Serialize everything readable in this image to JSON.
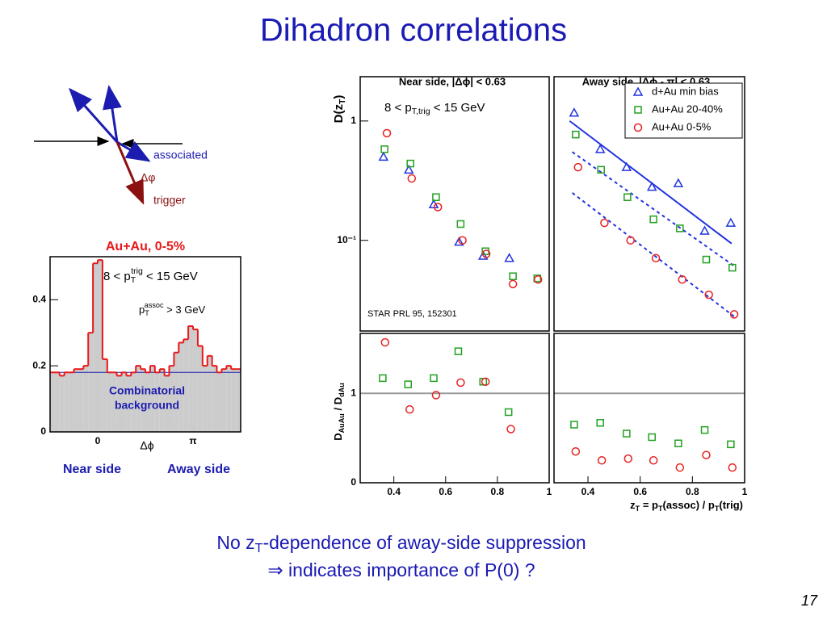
{
  "title": "Dihadron correlations",
  "diagram": {
    "associated": "associated",
    "delta_phi": "Δφ",
    "trigger": "trigger"
  },
  "chart_data": [
    {
      "type": "histogram",
      "title": "Au+Au, 0-5%",
      "annotations": [
        [
          "8 < p",
          "T",
          "trig",
          " < 15 GeV"
        ],
        [
          "p",
          "T",
          "assoc",
          " > 3 GeV"
        ]
      ],
      "background_label": [
        "Combinatorial",
        "background"
      ],
      "x_label": "Δϕ",
      "side_labels": [
        "Near side",
        "Away side"
      ],
      "bins": [
        -1.571,
        -1.414,
        -1.257,
        -1.1,
        -0.942,
        -0.785,
        -0.628,
        -0.471,
        -0.314,
        -0.157,
        0,
        0.157,
        0.314,
        0.471,
        0.628,
        0.785,
        0.942,
        1.1,
        1.257,
        1.414,
        1.571,
        1.728,
        1.885,
        2.042,
        2.199,
        2.356,
        2.513,
        2.67,
        2.827,
        2.985,
        3.142,
        3.299,
        3.456,
        3.613,
        3.77,
        3.927,
        4.084,
        4.241,
        4.398,
        4.555,
        4.712
      ],
      "values": [
        0.18,
        0.18,
        0.17,
        0.18,
        0.18,
        0.19,
        0.19,
        0.2,
        0.3,
        0.51,
        0.52,
        0.22,
        0.18,
        0.18,
        0.17,
        0.18,
        0.17,
        0.18,
        0.2,
        0.19,
        0.18,
        0.2,
        0.18,
        0.19,
        0.17,
        0.2,
        0.24,
        0.27,
        0.28,
        0.32,
        0.31,
        0.26,
        0.2,
        0.23,
        0.2,
        0.18,
        0.19,
        0.2,
        0.19,
        0.19
      ],
      "color": "#e81818",
      "fill": "#cccccc",
      "background_level": 0.18,
      "background_color": "#1c1cb0",
      "xlim": [
        -1.571,
        4.712
      ],
      "xticks": [
        0,
        {
          "value": 3.1416,
          "label": "π"
        }
      ],
      "ylim": [
        0,
        0.53
      ],
      "yticks": [
        0,
        0.2,
        0.4
      ]
    },
    {
      "type": "scatter",
      "title": "Near side, |Δϕ| < 0.63",
      "y_label": [
        "D(z",
        "T",
        ")"
      ],
      "annotations": [
        [
          "8 < p",
          "T,trig",
          " < 15 GeV"
        ],
        [
          "STAR PRL 95, 152301"
        ]
      ],
      "yscale": "log",
      "xlim": [
        0.27,
        1.0
      ],
      "ylim": [
        0.0174,
        2.35
      ],
      "yticks": [
        1,
        {
          "value": 0.1,
          "label": "10⁻¹"
        }
      ],
      "series": [
        {
          "marker": "triangle",
          "color": "#2233dd",
          "x": [
            0.36,
            0.458,
            0.554,
            0.652,
            0.745,
            0.846
          ],
          "values": [
            0.5,
            0.39,
            0.2,
            0.097,
            0.074,
            0.071
          ]
        },
        {
          "marker": "square",
          "color": "#22a022",
          "x": [
            0.364,
            0.464,
            0.563,
            0.658,
            0.754,
            0.86,
            0.954
          ],
          "values": [
            0.58,
            0.44,
            0.23,
            0.137,
            0.081,
            0.05,
            0.048
          ]
        },
        {
          "marker": "circle",
          "color": "#e82020",
          "x": [
            0.373,
            0.469,
            0.57,
            0.665,
            0.757,
            0.86,
            0.957
          ],
          "values": [
            0.79,
            0.33,
            0.19,
            0.1,
            0.077,
            0.043,
            0.047
          ]
        }
      ]
    },
    {
      "type": "scatter",
      "title": "Away side, |Δϕ - π| < 0.63",
      "yscale": "log",
      "xlim": [
        0.27,
        1.0
      ],
      "ylim": [
        0.0174,
        2.35
      ],
      "legend": "upper right",
      "series": [
        {
          "name": "d+Au min bias",
          "marker": "triangle",
          "color": "#2233dd",
          "x": [
            0.347,
            0.447,
            0.548,
            0.645,
            0.746,
            0.847,
            0.947
          ],
          "values": [
            1.17,
            0.58,
            0.41,
            0.28,
            0.3,
            0.12,
            0.14
          ]
        },
        {
          "name": "Au+Au 20-40%",
          "marker": "square",
          "color": "#22a022",
          "x": [
            0.353,
            0.45,
            0.551,
            0.651,
            0.752,
            0.853,
            0.953
          ],
          "values": [
            0.77,
            0.39,
            0.23,
            0.15,
            0.126,
            0.069,
            0.059
          ]
        },
        {
          "name": "Au+Au 0-5%",
          "marker": "circle",
          "color": "#e82020",
          "x": [
            0.362,
            0.463,
            0.563,
            0.66,
            0.761,
            0.863,
            0.96
          ],
          "values": [
            0.41,
            0.14,
            0.1,
            0.071,
            0.047,
            0.035,
            0.024
          ]
        }
      ],
      "fits": [
        {
          "color": "#2233dd",
          "dash": false,
          "x": [
            0.33,
            0.95
          ],
          "values": [
            1.0,
            0.094
          ]
        },
        {
          "color": "#2233dd",
          "dash": true,
          "x": [
            0.34,
            0.96
          ],
          "values": [
            0.55,
            0.061
          ]
        },
        {
          "color": "#2233dd",
          "dash": true,
          "x": [
            0.34,
            0.96
          ],
          "values": [
            0.25,
            0.023
          ]
        }
      ]
    },
    {
      "type": "scatter",
      "y_label": [
        "D",
        "AuAu",
        " / D",
        "dAu"
      ],
      "xlim": [
        0.27,
        1.0
      ],
      "xticks": [
        0.4,
        0.6,
        0.8,
        1
      ],
      "ylim": [
        0,
        1.67
      ],
      "yticks": [
        0,
        1
      ],
      "reference_line": 1,
      "series": [
        {
          "marker": "square",
          "color": "#22a022",
          "x": [
            0.357,
            0.455,
            0.554,
            0.649,
            0.745,
            0.843
          ],
          "values": [
            1.17,
            1.1,
            1.17,
            1.47,
            1.13,
            0.79
          ]
        },
        {
          "marker": "circle",
          "color": "#e82020",
          "x": [
            0.366,
            0.461,
            0.563,
            0.658,
            0.754,
            0.852
          ],
          "values": [
            1.57,
            0.82,
            0.98,
            1.12,
            1.13,
            0.6
          ]
        }
      ]
    },
    {
      "type": "scatter",
      "x_label": [
        "z",
        "T",
        " = p",
        "T",
        "(assoc) / p",
        "T",
        "(trig)"
      ],
      "xlim": [
        0.27,
        1.0
      ],
      "xticks": [
        0.4,
        0.6,
        0.8,
        1
      ],
      "ylim": [
        0,
        1.67
      ],
      "reference_line": 1,
      "series": [
        {
          "marker": "square",
          "color": "#22a022",
          "x": [
            0.347,
            0.447,
            0.548,
            0.645,
            0.746,
            0.847,
            0.947
          ],
          "values": [
            0.65,
            0.67,
            0.55,
            0.51,
            0.44,
            0.59,
            0.43
          ]
        },
        {
          "marker": "circle",
          "color": "#e82020",
          "x": [
            0.353,
            0.453,
            0.554,
            0.651,
            0.752,
            0.853,
            0.953
          ],
          "values": [
            0.35,
            0.25,
            0.27,
            0.25,
            0.17,
            0.31,
            0.17
          ]
        }
      ]
    }
  ],
  "conclusion": {
    "line1": [
      "No z",
      "T",
      "-dependence of away-side suppression"
    ],
    "line2": "⇒ indicates importance of P(0) ?"
  },
  "page_number": "17"
}
